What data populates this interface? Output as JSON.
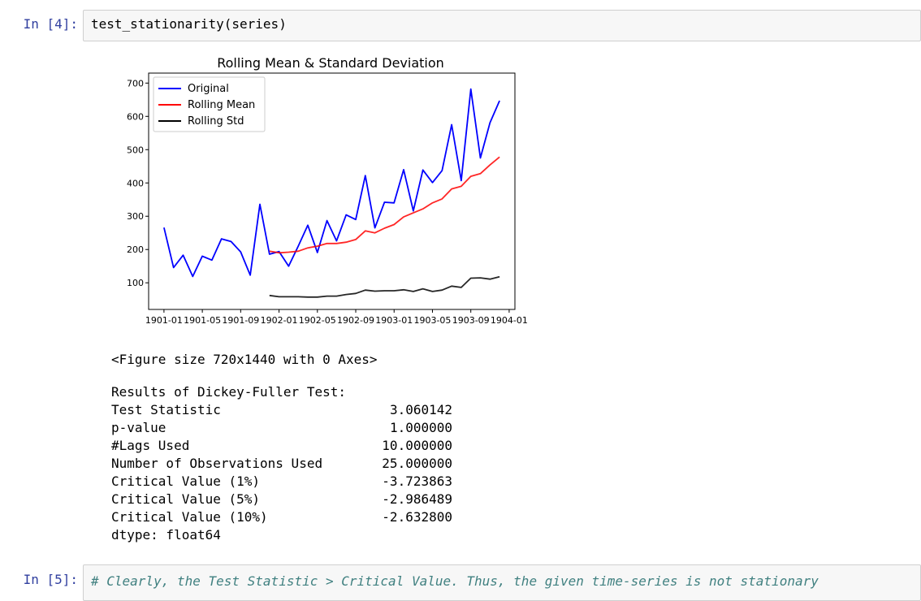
{
  "cell4": {
    "prompt": "In [4]:",
    "code": "test_stationarity(series)"
  },
  "chart_data": {
    "type": "line",
    "title": "Rolling Mean & Standard Deviation",
    "xlabel": "",
    "ylabel": "",
    "ylim": [
      20,
      730
    ],
    "xlim": [
      -1.6,
      36.6
    ],
    "yticks": [
      100,
      200,
      300,
      400,
      500,
      600,
      700
    ],
    "xticks": [
      {
        "label": "1901-01",
        "x": 0
      },
      {
        "label": "1901-05",
        "x": 4
      },
      {
        "label": "1901-09",
        "x": 8
      },
      {
        "label": "1902-01",
        "x": 12
      },
      {
        "label": "1902-05",
        "x": 16
      },
      {
        "label": "1902-09",
        "x": 20
      },
      {
        "label": "1903-01",
        "x": 24
      },
      {
        "label": "1903-05",
        "x": 28
      },
      {
        "label": "1903-09",
        "x": 32
      },
      {
        "label": "1904-01",
        "x": 36
      }
    ],
    "legend_position": "top-left",
    "series": [
      {
        "name": "Original",
        "color": "#0000ff",
        "values": [
          266,
          146,
          183,
          119,
          180,
          168,
          232,
          224,
          193,
          123,
          336,
          186,
          194,
          150,
          210,
          273,
          191,
          287,
          226,
          304,
          290,
          422,
          265,
          342,
          340,
          440,
          316,
          439,
          401,
          437,
          575,
          407,
          682,
          475,
          581,
          647
        ]
      },
      {
        "name": "Rolling Mean",
        "color": "#ff0000",
        "start": 11,
        "values": [
          195,
          190,
          192,
          195,
          205,
          210,
          218,
          218,
          222,
          230,
          256,
          250,
          264,
          275,
          298,
          310,
          322,
          340,
          352,
          382,
          390,
          420,
          428,
          454,
          478
        ]
      },
      {
        "name": "Rolling Std",
        "color": "#000000",
        "start": 11,
        "values": [
          62,
          58,
          58,
          58,
          57,
          57,
          60,
          60,
          65,
          68,
          78,
          75,
          76,
          76,
          79,
          74,
          82,
          74,
          78,
          90,
          86,
          114,
          115,
          111,
          118
        ]
      }
    ]
  },
  "figure_repr": "<Figure size 720x1440 with 0 Axes>",
  "dickey_fuller": {
    "header": "Results of Dickey-Fuller Test:",
    "rows": [
      {
        "name": "Test Statistic",
        "value": "3.060142"
      },
      {
        "name": "p-value",
        "value": "1.000000"
      },
      {
        "name": "#Lags Used",
        "value": "10.000000"
      },
      {
        "name": "Number of Observations Used",
        "value": "25.000000"
      },
      {
        "name": "Critical Value (1%)",
        "value": "-3.723863"
      },
      {
        "name": "Critical Value (5%)",
        "value": "-2.986489"
      },
      {
        "name": "Critical Value (10%)",
        "value": "-2.632800"
      }
    ],
    "dtype": "dtype: float64"
  },
  "cell5": {
    "prompt": "In [5]:",
    "code": "# Clearly, the Test Statistic > Critical Value. Thus, the given time-series is not stationary"
  }
}
